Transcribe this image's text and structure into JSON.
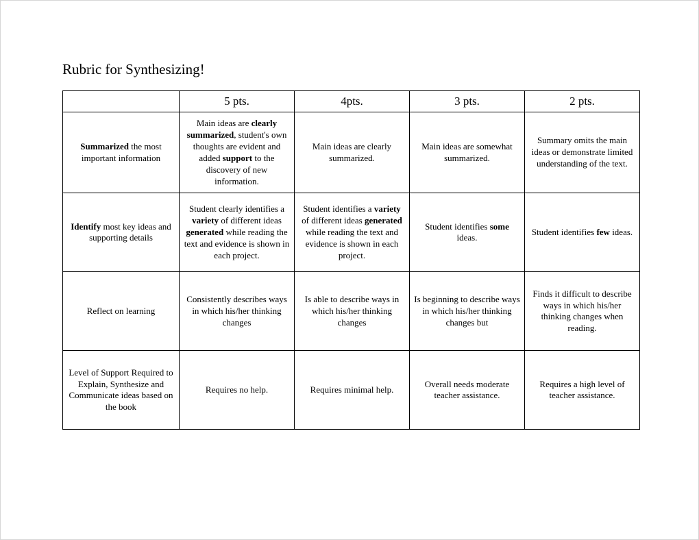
{
  "title": "Rubric for Synthesizing!",
  "headers": [
    "",
    "5 pts.",
    "4pts.",
    "3 pts.",
    "2 pts."
  ],
  "rows": [
    {
      "criteria": [
        {
          "t": "Summarized",
          "b": true
        },
        {
          "t": " the most important information",
          "b": false
        }
      ],
      "cells": [
        [
          {
            "t": "Main ideas are ",
            "b": false
          },
          {
            "t": "clearly summarized",
            "b": true
          },
          {
            "t": ", student's own thoughts are evident and added ",
            "b": false
          },
          {
            "t": "support",
            "b": true
          },
          {
            "t": " to the discovery of new information.",
            "b": false
          }
        ],
        [
          {
            "t": "Main ideas are clearly summarized.",
            "b": false
          }
        ],
        [
          {
            "t": "Main ideas are somewhat summarized.",
            "b": false
          }
        ],
        [
          {
            "t": "Summary omits the main ideas or demonstrate limited understanding of the text.",
            "b": false
          }
        ]
      ]
    },
    {
      "criteria": [
        {
          "t": "Identify",
          "b": true
        },
        {
          "t": " most key ideas and supporting details",
          "b": false
        }
      ],
      "cells": [
        [
          {
            "t": "Student clearly identifies a ",
            "b": false
          },
          {
            "t": "variety",
            "b": true
          },
          {
            "t": " of different ideas ",
            "b": false
          },
          {
            "t": "generated",
            "b": true
          },
          {
            "t": " while reading the text and evidence is shown in each project.",
            "b": false
          }
        ],
        [
          {
            "t": "Student identifies a ",
            "b": false
          },
          {
            "t": "variety",
            "b": true
          },
          {
            "t": " of different ideas ",
            "b": false
          },
          {
            "t": "generated",
            "b": true
          },
          {
            "t": " while reading the text and evidence is shown in each project.",
            "b": false
          }
        ],
        [
          {
            "t": "Student identifies ",
            "b": false
          },
          {
            "t": "some",
            "b": true
          },
          {
            "t": " ideas.",
            "b": false
          }
        ],
        [
          {
            "t": "Student identifies ",
            "b": false
          },
          {
            "t": "few",
            "b": true
          },
          {
            "t": " ideas.",
            "b": false
          }
        ]
      ]
    },
    {
      "criteria": [
        {
          "t": "Reflect on learning",
          "b": false
        }
      ],
      "cells": [
        [
          {
            "t": "Consistently describes ways in which his/her thinking changes",
            "b": false
          }
        ],
        [
          {
            "t": "Is able to describe ways in which his/her thinking changes",
            "b": false
          }
        ],
        [
          {
            "t": "Is beginning to describe ways in which his/her thinking changes but",
            "b": false
          }
        ],
        [
          {
            "t": "Finds it difficult to describe ways in which his/her thinking changes when reading.",
            "b": false
          }
        ]
      ]
    },
    {
      "criteria": [
        {
          "t": "Level of Support Required to Explain, Synthesize and Communicate ideas based on the book",
          "b": false
        }
      ],
      "cells": [
        [
          {
            "t": "Requires no help.",
            "b": false
          }
        ],
        [
          {
            "t": "Requires minimal help.",
            "b": false
          }
        ],
        [
          {
            "t": "Overall needs moderate teacher assistance.",
            "b": false
          }
        ],
        [
          {
            "t": "Requires a high level of teacher assistance.",
            "b": false
          }
        ]
      ]
    }
  ],
  "style": {
    "background": "#ffffff",
    "border": "#000000",
    "page_border": "#d6d6d6",
    "font_family": "Times New Roman",
    "title_fontsize": 21,
    "header_fontsize": 17,
    "cell_fontsize": 13
  }
}
